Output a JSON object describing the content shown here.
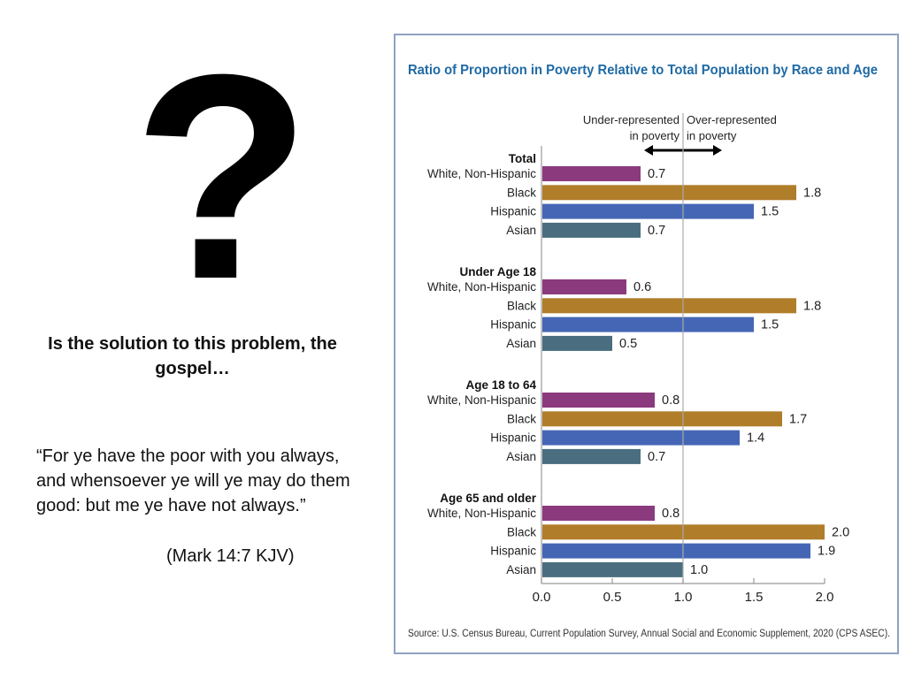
{
  "slide": {
    "question_mark_icon": "?",
    "question_text": "Is the solution to this problem, the gospel…",
    "quote_text": "“For ye have the poor with you always, and whensoever ye will ye may do them good: but me ye have not always.”",
    "citation": "(Mark 14:7 KJV)"
  },
  "chart_data": {
    "type": "bar",
    "orientation": "horizontal",
    "title": "Ratio of Proportion in Poverty Relative to Total Population by Race and Age",
    "annotation_left": [
      "Under-represented",
      "in poverty"
    ],
    "annotation_right": [
      "Over-represented",
      "in poverty"
    ],
    "reference_value": 1.0,
    "xlim": [
      0,
      2.0
    ],
    "xticks": [
      "0.0",
      "0.5",
      "1.0",
      "1.5",
      "2.0"
    ],
    "xtick_values": [
      0,
      0.5,
      1.0,
      1.5,
      2.0
    ],
    "xlabel": "",
    "ylabel": "",
    "grid": false,
    "categories": [
      "White, Non-Hispanic",
      "Black",
      "Hispanic",
      "Asian"
    ],
    "colors": {
      "White, Non-Hispanic": "#8b3a7e",
      "Black": "#b07d2a",
      "Hispanic": "#4466b5",
      "Asian": "#4a6e80"
    },
    "title_color": "#1f6aa5",
    "groups": [
      {
        "name": "Total",
        "values": [
          0.7,
          1.8,
          1.5,
          0.7
        ],
        "labels": [
          "0.7",
          "1.8",
          "1.5",
          "0.7"
        ]
      },
      {
        "name": "Under Age 18",
        "values": [
          0.6,
          1.8,
          1.5,
          0.5
        ],
        "labels": [
          "0.6",
          "1.8",
          "1.5",
          "0.5"
        ]
      },
      {
        "name": "Age 18 to 64",
        "values": [
          0.8,
          1.7,
          1.4,
          0.7
        ],
        "labels": [
          "0.8",
          "1.7",
          "1.4",
          "0.7"
        ]
      },
      {
        "name": "Age 65 and older",
        "values": [
          0.8,
          2.0,
          1.9,
          1.0
        ],
        "labels": [
          "0.8",
          "2.0",
          "1.9",
          "1.0"
        ]
      }
    ],
    "source": "Source: U.S. Census Bureau, Current Population Survey, Annual Social and Economic Supplement, 2020 (CPS ASEC)."
  }
}
